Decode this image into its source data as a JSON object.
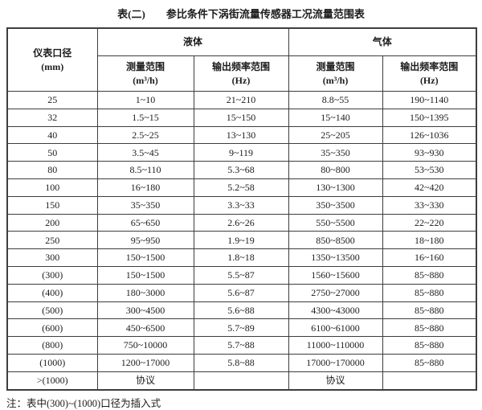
{
  "title": {
    "prefix": "表(二)",
    "text": "参比条件下涡街流量传感器工况流量范围表"
  },
  "table": {
    "header": {
      "diameter_label": "仪表口径",
      "diameter_unit": "(mm)",
      "liquid_label": "液体",
      "gas_label": "气体",
      "range_label": "测量范围",
      "range_unit": "(m³/h)",
      "freq_label": "输出频率范围",
      "freq_unit": "(Hz)"
    },
    "rows": [
      {
        "diameter": "25",
        "liquid_range": "1~10",
        "liquid_freq": "21~210",
        "gas_range": "8.8~55",
        "gas_freq": "190~1140"
      },
      {
        "diameter": "32",
        "liquid_range": "1.5~15",
        "liquid_freq": "15~150",
        "gas_range": "15~140",
        "gas_freq": "150~1395"
      },
      {
        "diameter": "40",
        "liquid_range": "2.5~25",
        "liquid_freq": "13~130",
        "gas_range": "25~205",
        "gas_freq": "126~1036"
      },
      {
        "diameter": "50",
        "liquid_range": "3.5~45",
        "liquid_freq": "9~119",
        "gas_range": "35~350",
        "gas_freq": "93~930"
      },
      {
        "diameter": "80",
        "liquid_range": "8.5~110",
        "liquid_freq": "5.3~68",
        "gas_range": "80~800",
        "gas_freq": "53~530"
      },
      {
        "diameter": "100",
        "liquid_range": "16~180",
        "liquid_freq": "5.2~58",
        "gas_range": "130~1300",
        "gas_freq": "42~420"
      },
      {
        "diameter": "150",
        "liquid_range": "35~350",
        "liquid_freq": "3.3~33",
        "gas_range": "350~3500",
        "gas_freq": "33~330"
      },
      {
        "diameter": "200",
        "liquid_range": "65~650",
        "liquid_freq": "2.6~26",
        "gas_range": "550~5500",
        "gas_freq": "22~220"
      },
      {
        "diameter": "250",
        "liquid_range": "95~950",
        "liquid_freq": "1.9~19",
        "gas_range": "850~8500",
        "gas_freq": "18~180"
      },
      {
        "diameter": "300",
        "liquid_range": "150~1500",
        "liquid_freq": "1.8~18",
        "gas_range": "1350~13500",
        "gas_freq": "16~160"
      },
      {
        "diameter": "(300)",
        "liquid_range": "150~1500",
        "liquid_freq": "5.5~87",
        "gas_range": "1560~15600",
        "gas_freq": "85~880"
      },
      {
        "diameter": "(400)",
        "liquid_range": "180~3000",
        "liquid_freq": "5.6~87",
        "gas_range": "2750~27000",
        "gas_freq": "85~880"
      },
      {
        "diameter": "(500)",
        "liquid_range": "300~4500",
        "liquid_freq": "5.6~88",
        "gas_range": "4300~43000",
        "gas_freq": "85~880"
      },
      {
        "diameter": "(600)",
        "liquid_range": "450~6500",
        "liquid_freq": "5.7~89",
        "gas_range": "6100~61000",
        "gas_freq": "85~880"
      },
      {
        "diameter": "(800)",
        "liquid_range": "750~10000",
        "liquid_freq": "5.7~88",
        "gas_range": "11000~110000",
        "gas_freq": "85~880"
      },
      {
        "diameter": "(1000)",
        "liquid_range": "1200~17000",
        "liquid_freq": "5.8~88",
        "gas_range": "17000~170000",
        "gas_freq": "85~880"
      },
      {
        "diameter": ">(1000)",
        "liquid_range": "协议",
        "liquid_freq": "",
        "gas_range": "协议",
        "gas_freq": ""
      }
    ]
  },
  "note": "注：表中(300)~(1000)口径为插入式"
}
